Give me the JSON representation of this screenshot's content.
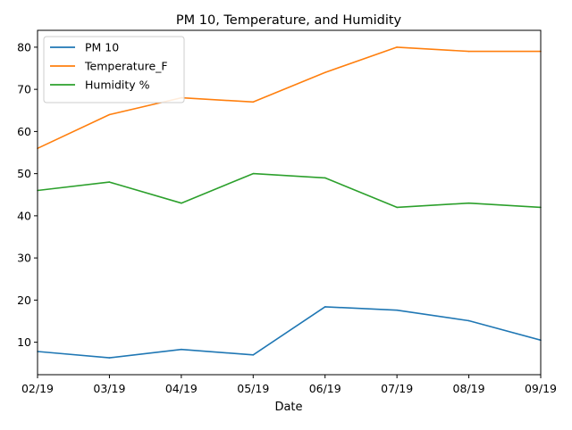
{
  "chart_data": {
    "type": "line",
    "title": "PM 10, Temperature, and Humidity",
    "xlabel": "Date",
    "ylabel": "",
    "categories": [
      "02/19",
      "03/19",
      "04/19",
      "05/19",
      "06/19",
      "07/19",
      "08/19",
      "09/19"
    ],
    "yticks": [
      10,
      20,
      30,
      40,
      50,
      60,
      70,
      80
    ],
    "ylim": [
      2.3,
      84
    ],
    "grid": false,
    "legend_position": "upper-left",
    "series": [
      {
        "name": "PM 10",
        "color": "#1f77b4",
        "values": [
          7.8,
          6.3,
          8.3,
          7.0,
          18.4,
          17.6,
          15.1,
          10.5
        ]
      },
      {
        "name": "Temperature_F",
        "color": "#ff7f0e",
        "values": [
          56,
          64,
          68,
          67,
          74,
          80,
          79,
          79
        ]
      },
      {
        "name": "Humidity %",
        "color": "#2ca02c",
        "values": [
          46,
          48,
          43,
          50,
          49,
          42,
          43,
          42
        ]
      }
    ]
  }
}
